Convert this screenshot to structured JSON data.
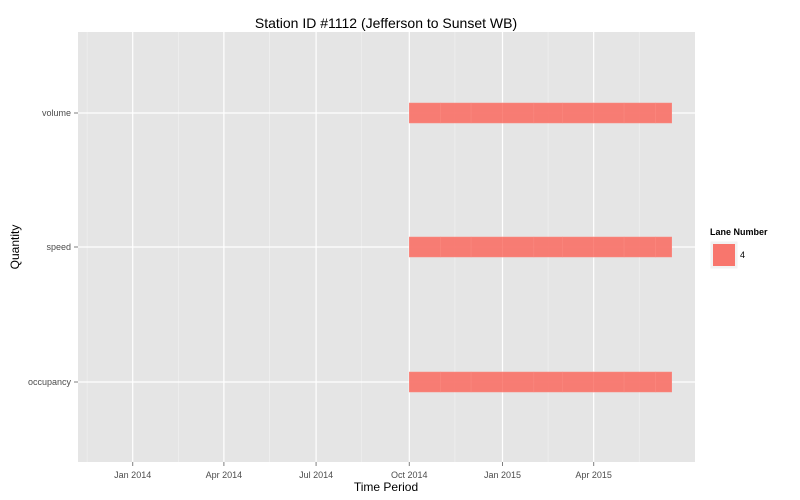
{
  "chart_data": {
    "type": "bar",
    "orientation": "horizontal",
    "title": "Station ID #1112 (Jefferson to Sunset WB)",
    "xlabel": "Time Period",
    "ylabel": "Quantity",
    "x_scale": "date",
    "xlim": [
      "2013-11-08",
      "2015-07-10"
    ],
    "x_ticks": [
      {
        "date": "2014-01-01",
        "label": "Jan 2014"
      },
      {
        "date": "2014-04-01",
        "label": "Apr 2014"
      },
      {
        "date": "2014-07-01",
        "label": "Jul 2014"
      },
      {
        "date": "2014-10-01",
        "label": "Oct 2014"
      },
      {
        "date": "2015-01-01",
        "label": "Jan 2015"
      },
      {
        "date": "2015-04-01",
        "label": "Apr 2015"
      }
    ],
    "categories": [
      "volume",
      "speed",
      "occupancy"
    ],
    "legend": {
      "title": "Lane Number",
      "placement": "right",
      "entries": [
        {
          "label": "4",
          "color": "#f8766d"
        }
      ]
    },
    "series": [
      {
        "name": "4",
        "color": "#f8766d",
        "segments": [
          {
            "category": "volume",
            "start": "2014-10-01",
            "end": "2014-11-01"
          },
          {
            "category": "volume",
            "start": "2014-11-01",
            "end": "2014-12-01"
          },
          {
            "category": "volume",
            "start": "2014-12-01",
            "end": "2015-01-01"
          },
          {
            "category": "volume",
            "start": "2015-01-01",
            "end": "2015-02-01"
          },
          {
            "category": "volume",
            "start": "2015-02-01",
            "end": "2015-03-01"
          },
          {
            "category": "volume",
            "start": "2015-03-01",
            "end": "2015-04-01"
          },
          {
            "category": "volume",
            "start": "2015-04-01",
            "end": "2015-05-01"
          },
          {
            "category": "volume",
            "start": "2015-05-01",
            "end": "2015-06-01"
          },
          {
            "category": "volume",
            "start": "2015-06-01",
            "end": "2015-06-17"
          },
          {
            "category": "speed",
            "start": "2014-10-01",
            "end": "2014-11-01"
          },
          {
            "category": "speed",
            "start": "2014-11-01",
            "end": "2014-12-01"
          },
          {
            "category": "speed",
            "start": "2014-12-01",
            "end": "2015-01-01"
          },
          {
            "category": "speed",
            "start": "2015-01-01",
            "end": "2015-02-01"
          },
          {
            "category": "speed",
            "start": "2015-02-01",
            "end": "2015-03-01"
          },
          {
            "category": "speed",
            "start": "2015-03-01",
            "end": "2015-04-01"
          },
          {
            "category": "speed",
            "start": "2015-04-01",
            "end": "2015-05-01"
          },
          {
            "category": "speed",
            "start": "2015-05-01",
            "end": "2015-06-01"
          },
          {
            "category": "speed",
            "start": "2015-06-01",
            "end": "2015-06-17"
          },
          {
            "category": "occupancy",
            "start": "2014-10-01",
            "end": "2014-11-01"
          },
          {
            "category": "occupancy",
            "start": "2014-11-01",
            "end": "2014-12-01"
          },
          {
            "category": "occupancy",
            "start": "2014-12-01",
            "end": "2015-01-01"
          },
          {
            "category": "occupancy",
            "start": "2015-01-01",
            "end": "2015-02-01"
          },
          {
            "category": "occupancy",
            "start": "2015-02-01",
            "end": "2015-03-01"
          },
          {
            "category": "occupancy",
            "start": "2015-03-01",
            "end": "2015-04-01"
          },
          {
            "category": "occupancy",
            "start": "2015-04-01",
            "end": "2015-05-01"
          },
          {
            "category": "occupancy",
            "start": "2015-05-01",
            "end": "2015-06-01"
          },
          {
            "category": "occupancy",
            "start": "2015-06-01",
            "end": "2015-06-17"
          }
        ]
      }
    ],
    "grid": true,
    "panel_background": "#e5e5e5",
    "grid_color": "#ffffff"
  }
}
